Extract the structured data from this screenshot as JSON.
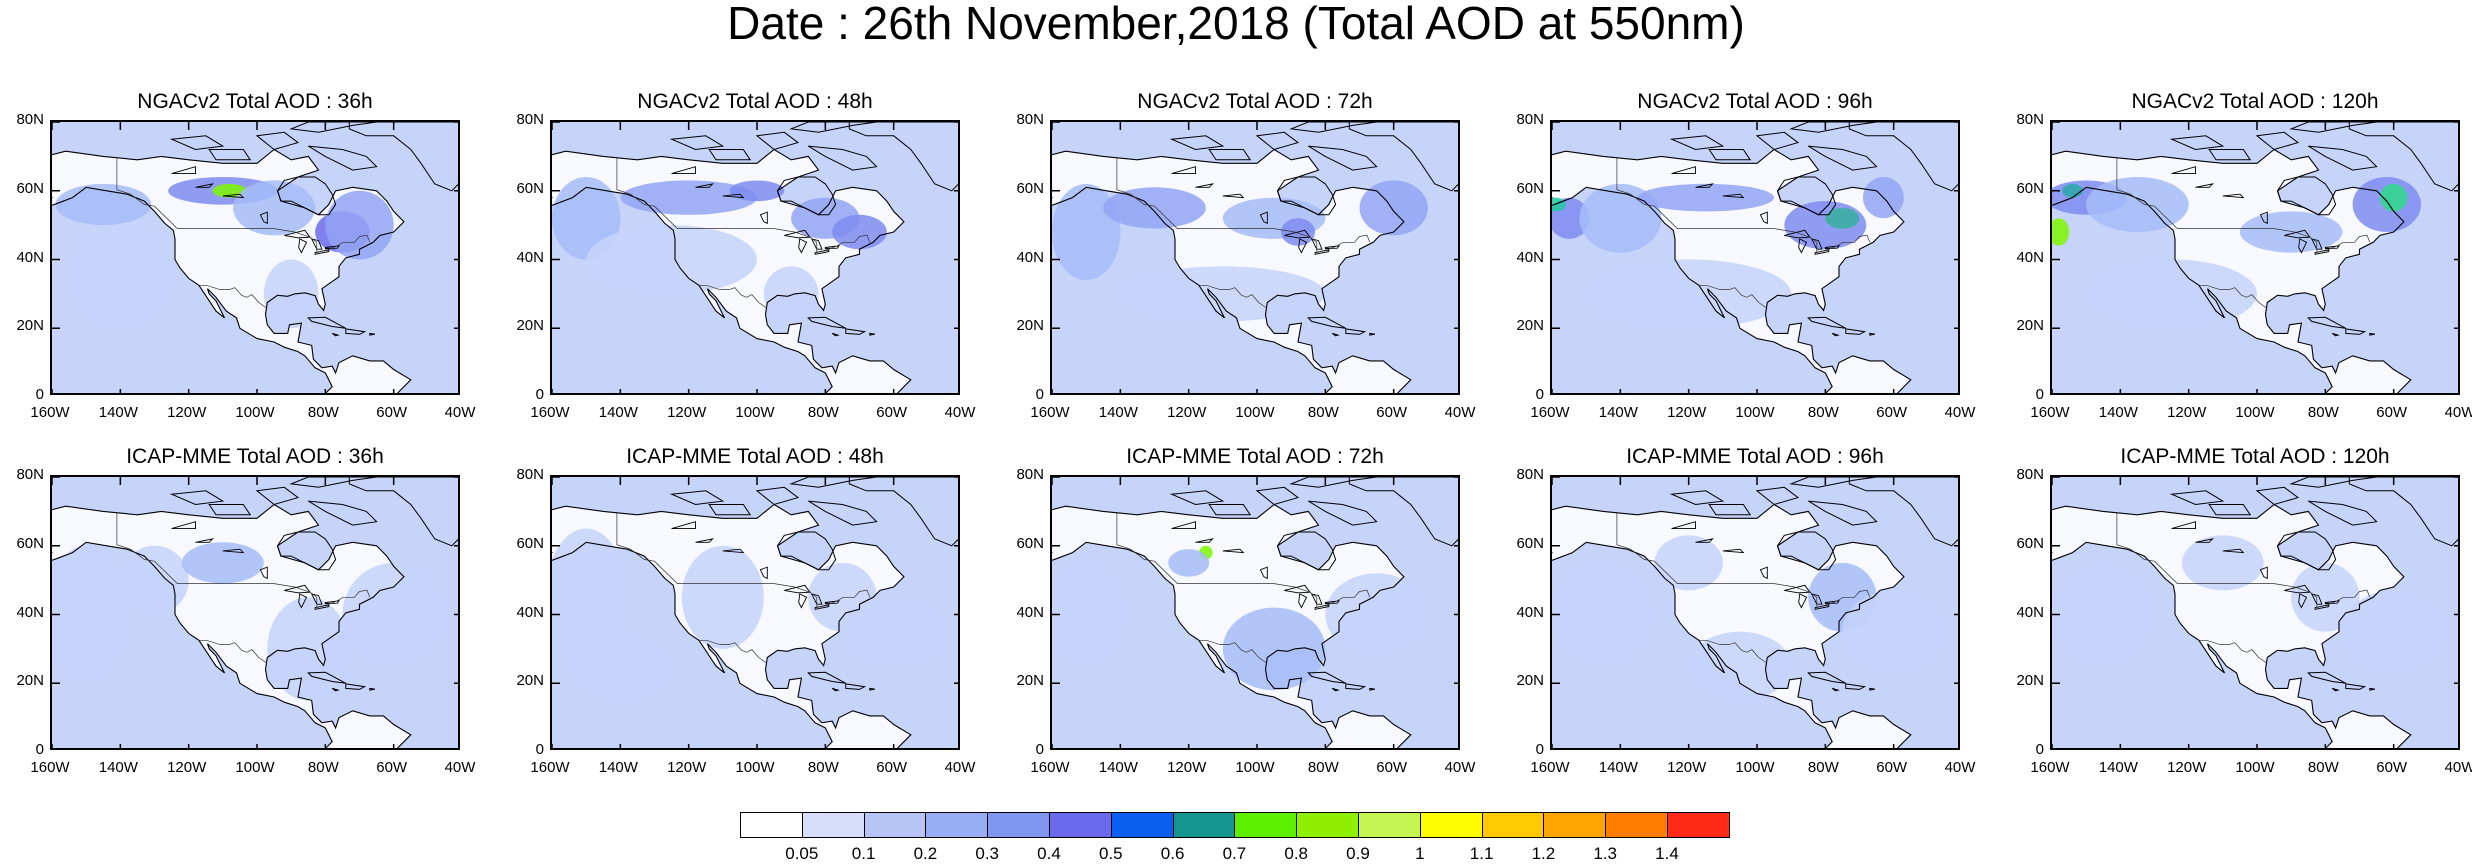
{
  "title": "Date : 26th November,2018 (Total AOD at 550nm)",
  "y_ticks": [
    "80N",
    "60N",
    "40N",
    "20N",
    "0"
  ],
  "x_ticks": [
    "160W",
    "140W",
    "120W",
    "100W",
    "80W",
    "60W",
    "40W"
  ],
  "panels": [
    {
      "title": "NGACv2 Total AOD : 36h",
      "blobs": [
        [
          -145,
          56,
          14,
          6,
          "#a6bcf8"
        ],
        [
          -110,
          60,
          16,
          4,
          "#7e8cf0"
        ],
        [
          -108,
          60,
          5,
          2,
          "#7df700"
        ],
        [
          -95,
          55,
          12,
          8,
          "#a6bcf8"
        ],
        [
          -75,
          48,
          8,
          6,
          "#6b6bef"
        ],
        [
          -70,
          50,
          10,
          10,
          "#93a4f4"
        ],
        [
          -140,
          35,
          15,
          15,
          "#c6d4fa"
        ],
        [
          -90,
          30,
          8,
          10,
          "#c6d4fa"
        ]
      ]
    },
    {
      "title": "NGACv2 Total AOD : 48h",
      "blobs": [
        [
          -150,
          52,
          10,
          12,
          "#a6bcf8"
        ],
        [
          -120,
          58,
          20,
          5,
          "#93a4f4"
        ],
        [
          -100,
          60,
          8,
          3,
          "#7e8cf0"
        ],
        [
          -80,
          52,
          10,
          6,
          "#93a4f4"
        ],
        [
          -70,
          48,
          8,
          5,
          "#7e8cf0"
        ],
        [
          -125,
          40,
          25,
          10,
          "#c6d4fa"
        ],
        [
          -90,
          30,
          8,
          8,
          "#c6d4fa"
        ]
      ]
    },
    {
      "title": "NGACv2 Total AOD : 72h",
      "blobs": [
        [
          -150,
          48,
          10,
          14,
          "#a6bcf8"
        ],
        [
          -130,
          55,
          15,
          6,
          "#93a4f4"
        ],
        [
          -95,
          52,
          15,
          6,
          "#a6bcf8"
        ],
        [
          -88,
          48,
          5,
          4,
          "#7e8cf0"
        ],
        [
          -60,
          55,
          10,
          8,
          "#93a4f4"
        ],
        [
          -110,
          30,
          30,
          8,
          "#c6d4fa"
        ]
      ]
    },
    {
      "title": "NGACv2 Total AOD : 96h",
      "blobs": [
        [
          -155,
          52,
          6,
          6,
          "#7e8cf0"
        ],
        [
          -159,
          56,
          3,
          2,
          "#1ec8a0"
        ],
        [
          -140,
          52,
          12,
          10,
          "#a6bcf8"
        ],
        [
          -115,
          58,
          20,
          4,
          "#93a4f4"
        ],
        [
          -80,
          50,
          12,
          7,
          "#7e8cf0"
        ],
        [
          -75,
          52,
          5,
          3,
          "#37b0a0"
        ],
        [
          -63,
          58,
          6,
          6,
          "#93a4f4"
        ],
        [
          -120,
          30,
          30,
          10,
          "#c6d4fa"
        ]
      ]
    },
    {
      "title": "NGACv2 Total AOD : 120h",
      "blobs": [
        [
          -150,
          58,
          12,
          5,
          "#7e8cf0"
        ],
        [
          -154,
          60,
          3,
          2,
          "#2aa8a8"
        ],
        [
          -158,
          48,
          3,
          4,
          "#7df700"
        ],
        [
          -135,
          56,
          15,
          8,
          "#a6bcf8"
        ],
        [
          -62,
          56,
          10,
          8,
          "#7e8cf0"
        ],
        [
          -60,
          58,
          4,
          4,
          "#2ed88a"
        ],
        [
          -90,
          48,
          15,
          6,
          "#a6bcf8"
        ],
        [
          -125,
          30,
          25,
          10,
          "#c6d4fa"
        ]
      ]
    },
    {
      "title": "ICAP-MME Total AOD : 36h",
      "blobs": [
        [
          -150,
          40,
          12,
          20,
          "#c6d4fa"
        ],
        [
          -130,
          50,
          10,
          10,
          "#c6d4fa"
        ],
        [
          -110,
          55,
          12,
          6,
          "#a6bcf8"
        ],
        [
          -85,
          30,
          12,
          15,
          "#c6d4fa"
        ],
        [
          -60,
          40,
          15,
          15,
          "#c6d4fa"
        ]
      ]
    },
    {
      "title": "ICAP-MME Total AOD : 48h",
      "blobs": [
        [
          -150,
          45,
          12,
          20,
          "#c6d4fa"
        ],
        [
          -140,
          25,
          15,
          10,
          "#c6d4fa"
        ],
        [
          -110,
          45,
          12,
          15,
          "#c6d4fa"
        ],
        [
          -75,
          45,
          10,
          10,
          "#c6d4fa"
        ],
        [
          -60,
          35,
          15,
          10,
          "#c6d4fa"
        ]
      ]
    },
    {
      "title": "ICAP-MME Total AOD : 72h",
      "blobs": [
        [
          -150,
          40,
          12,
          15,
          "#c6d4fa"
        ],
        [
          -115,
          58,
          2,
          2,
          "#7df700"
        ],
        [
          -120,
          55,
          6,
          4,
          "#a6bcf8"
        ],
        [
          -95,
          30,
          15,
          12,
          "#a6bcf8"
        ],
        [
          -65,
          40,
          15,
          12,
          "#c6d4fa"
        ]
      ]
    },
    {
      "title": "ICAP-MME Total AOD : 96h",
      "blobs": [
        [
          -145,
          40,
          15,
          15,
          "#c6d4fa"
        ],
        [
          -120,
          55,
          10,
          8,
          "#c6d4fa"
        ],
        [
          -75,
          45,
          10,
          10,
          "#a6bcf8"
        ],
        [
          -60,
          35,
          15,
          12,
          "#c6d4fa"
        ],
        [
          -105,
          25,
          15,
          10,
          "#c6d4fa"
        ]
      ]
    },
    {
      "title": "ICAP-MME Total AOD : 120h",
      "blobs": [
        [
          -145,
          40,
          15,
          15,
          "#c6d4fa"
        ],
        [
          -80,
          45,
          10,
          10,
          "#c6d4fa"
        ],
        [
          -60,
          35,
          15,
          12,
          "#c6d4fa"
        ],
        [
          -110,
          55,
          12,
          8,
          "#c6d4fa"
        ]
      ]
    }
  ],
  "colorbar": {
    "colors": [
      "#ffffff",
      "#d6def9",
      "#b6c5f6",
      "#97aef4",
      "#8096f0",
      "#6a6bec",
      "#0a5ff0",
      "#15958f",
      "#5cf000",
      "#8ef000",
      "#c4f550",
      "#fffd00",
      "#ffc800",
      "#ffa400",
      "#ff7e00",
      "#ff2b17"
    ],
    "labels": [
      "0.05",
      "0.1",
      "0.2",
      "0.3",
      "0.4",
      "0.5",
      "0.6",
      "0.7",
      "0.8",
      "0.9",
      "1",
      "1.1",
      "1.2",
      "1.3",
      "1.4"
    ]
  },
  "map_background": "#c6d4fa",
  "land_base": "#ffffff"
}
